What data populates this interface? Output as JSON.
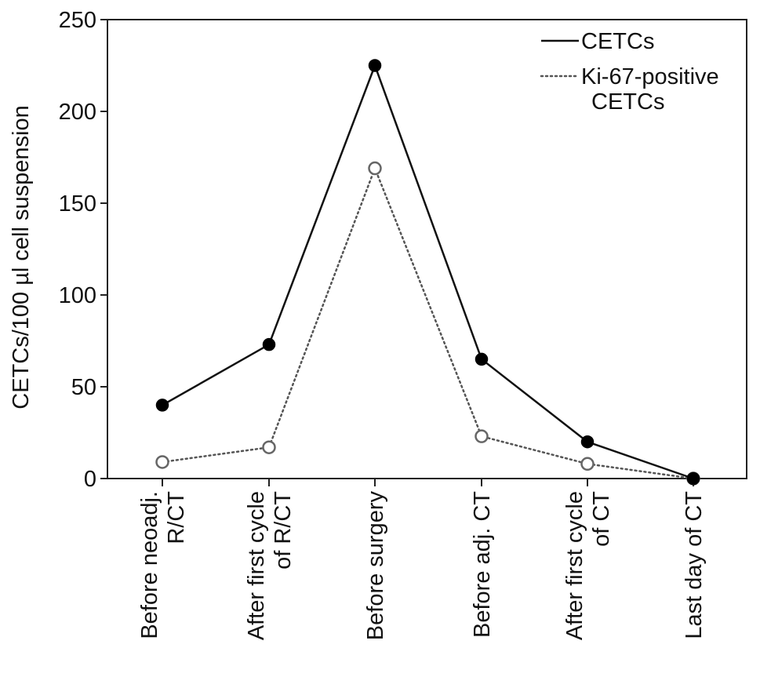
{
  "chart_data": {
    "type": "line",
    "categories": [
      [
        "Before neoadj.",
        "R/CT"
      ],
      [
        "After first cycle",
        "of R/CT"
      ],
      [
        "Before surgery"
      ],
      [
        "Before adj. CT"
      ],
      [
        "After first cycle",
        "of CT"
      ],
      [
        "Last day of CT"
      ]
    ],
    "series": [
      {
        "name": "CETCs",
        "values": [
          40,
          73,
          225,
          65,
          20,
          0
        ],
        "line_style": "solid",
        "marker": "filled-circle",
        "color": "#111111"
      },
      {
        "name": "Ki-67-positive CETCs",
        "legend_lines": [
          "Ki-67-positive",
          "CETCs"
        ],
        "values": [
          9,
          17,
          169,
          23,
          8,
          0
        ],
        "line_style": "dotted",
        "marker": "open-circle",
        "color": "#555555"
      }
    ],
    "ylabel": "CETCs/100 µl cell suspension",
    "xlabel": "",
    "title": "",
    "ylim": [
      0,
      250
    ],
    "yticks": [
      0,
      50,
      100,
      150,
      200,
      250
    ],
    "grid": false,
    "legend_position": "top-right"
  }
}
